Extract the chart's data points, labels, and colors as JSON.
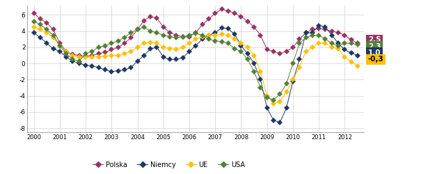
{
  "background_color": "#ffffff",
  "grid_color": "#d0d0d0",
  "xlim": [
    1999.75,
    2012.75
  ],
  "ylim": [
    -8.5,
    7.2
  ],
  "yticks": [
    -8,
    -6,
    -4,
    -2,
    0,
    2,
    4,
    6
  ],
  "xticks": [
    2000,
    2001,
    2002,
    2003,
    2004,
    2005,
    2006,
    2007,
    2008,
    2009,
    2010,
    2011,
    2012
  ],
  "legend_labels": [
    "Polska",
    "Niemcy",
    "UE",
    "USA"
  ],
  "legend_colors": [
    "#993366",
    "#1f3864",
    "#ffc000",
    "#538135"
  ],
  "ann_configs": [
    {
      "text": "2,5",
      "bg": "#993366",
      "fg": "#ffffff"
    },
    {
      "text": "2,3",
      "bg": "#538135",
      "fg": "#ffffff"
    },
    {
      "text": "1,0",
      "bg": "#1f3864",
      "fg": "#ffffff"
    },
    {
      "text": "-0,3",
      "bg": "#ffc000",
      "fg": "#000000"
    }
  ],
  "Polska": {
    "color": "#993366",
    "x": [
      2000.0,
      2000.25,
      2000.5,
      2000.75,
      2001.0,
      2001.25,
      2001.5,
      2001.75,
      2002.0,
      2002.25,
      2002.5,
      2002.75,
      2003.0,
      2003.25,
      2003.5,
      2003.75,
      2004.0,
      2004.25,
      2004.5,
      2004.75,
      2005.0,
      2005.25,
      2005.5,
      2005.75,
      2006.0,
      2006.25,
      2006.5,
      2006.75,
      2007.0,
      2007.25,
      2007.5,
      2007.75,
      2008.0,
      2008.25,
      2008.5,
      2008.75,
      2009.0,
      2009.25,
      2009.5,
      2009.75,
      2010.0,
      2010.25,
      2010.5,
      2010.75,
      2011.0,
      2011.25,
      2011.5,
      2011.75,
      2012.0,
      2012.25,
      2012.5
    ],
    "y": [
      6.2,
      5.5,
      5.0,
      4.2,
      2.5,
      1.5,
      1.1,
      1.0,
      0.9,
      1.0,
      1.2,
      1.4,
      1.7,
      2.0,
      2.5,
      3.2,
      4.2,
      5.3,
      5.8,
      5.6,
      4.5,
      3.8,
      3.5,
      3.3,
      3.3,
      3.8,
      4.8,
      5.5,
      6.2,
      6.7,
      6.5,
      6.2,
      5.8,
      5.2,
      4.5,
      3.5,
      1.7,
      1.5,
      1.2,
      1.5,
      2.0,
      3.0,
      3.8,
      4.2,
      4.3,
      4.2,
      4.0,
      3.8,
      3.5,
      2.9,
      2.5
    ]
  },
  "Niemcy": {
    "color": "#1f3864",
    "x": [
      2000.0,
      2000.25,
      2000.5,
      2000.75,
      2001.0,
      2001.25,
      2001.5,
      2001.75,
      2002.0,
      2002.25,
      2002.5,
      2002.75,
      2003.0,
      2003.25,
      2003.5,
      2003.75,
      2004.0,
      2004.25,
      2004.5,
      2004.75,
      2005.0,
      2005.25,
      2005.5,
      2005.75,
      2006.0,
      2006.25,
      2006.5,
      2006.75,
      2007.0,
      2007.25,
      2007.5,
      2007.75,
      2008.0,
      2008.25,
      2008.5,
      2008.75,
      2009.0,
      2009.25,
      2009.5,
      2009.75,
      2010.0,
      2010.25,
      2010.5,
      2010.75,
      2011.0,
      2011.25,
      2011.5,
      2011.75,
      2012.0,
      2012.25,
      2012.5
    ],
    "y": [
      3.8,
      3.2,
      2.5,
      1.8,
      1.5,
      0.8,
      0.3,
      0.0,
      -0.2,
      -0.3,
      -0.5,
      -0.8,
      -1.0,
      -0.9,
      -0.8,
      -0.5,
      0.3,
      1.0,
      1.8,
      2.0,
      0.8,
      0.5,
      0.5,
      0.7,
      1.5,
      2.2,
      3.0,
      3.5,
      3.8,
      4.4,
      4.3,
      3.6,
      2.2,
      1.2,
      0.0,
      -2.0,
      -5.5,
      -7.0,
      -7.3,
      -5.5,
      -2.2,
      0.5,
      3.8,
      3.8,
      4.7,
      4.5,
      3.5,
      2.5,
      1.7,
      1.3,
      1.0
    ]
  },
  "UE": {
    "color": "#ffc000",
    "x": [
      2000.0,
      2000.25,
      2000.5,
      2000.75,
      2001.0,
      2001.25,
      2001.5,
      2001.75,
      2002.0,
      2002.25,
      2002.5,
      2002.75,
      2003.0,
      2003.25,
      2003.5,
      2003.75,
      2004.0,
      2004.25,
      2004.5,
      2004.75,
      2005.0,
      2005.25,
      2005.5,
      2005.75,
      2006.0,
      2006.25,
      2006.5,
      2006.75,
      2007.0,
      2007.25,
      2007.5,
      2007.75,
      2008.0,
      2008.25,
      2008.5,
      2008.75,
      2009.0,
      2009.25,
      2009.5,
      2009.75,
      2010.0,
      2010.25,
      2010.5,
      2010.75,
      2011.0,
      2011.25,
      2011.5,
      2011.75,
      2012.0,
      2012.25,
      2012.5
    ],
    "y": [
      4.5,
      4.2,
      3.8,
      3.2,
      2.2,
      1.5,
      1.0,
      0.8,
      0.8,
      0.8,
      0.8,
      0.9,
      1.0,
      1.0,
      1.2,
      1.5,
      2.0,
      2.5,
      2.6,
      2.5,
      2.0,
      1.8,
      1.7,
      2.0,
      2.5,
      3.0,
      3.3,
      3.5,
      3.5,
      3.6,
      3.5,
      3.0,
      2.5,
      2.0,
      1.0,
      -1.0,
      -4.0,
      -5.0,
      -4.7,
      -3.5,
      -2.0,
      -0.5,
      1.5,
      2.0,
      2.5,
      2.5,
      2.0,
      1.8,
      0.8,
      0.2,
      -0.3
    ]
  },
  "USA": {
    "color": "#538135",
    "x": [
      2000.0,
      2000.25,
      2000.5,
      2000.75,
      2001.0,
      2001.25,
      2001.5,
      2001.75,
      2002.0,
      2002.25,
      2002.5,
      2002.75,
      2003.0,
      2003.25,
      2003.5,
      2003.75,
      2004.0,
      2004.25,
      2004.5,
      2004.75,
      2005.0,
      2005.25,
      2005.5,
      2005.75,
      2006.0,
      2006.25,
      2006.5,
      2006.75,
      2007.0,
      2007.25,
      2007.5,
      2007.75,
      2008.0,
      2008.25,
      2008.5,
      2008.75,
      2009.0,
      2009.25,
      2009.5,
      2009.75,
      2010.0,
      2010.25,
      2010.5,
      2010.75,
      2011.0,
      2011.25,
      2011.5,
      2011.75,
      2012.0,
      2012.25,
      2012.5
    ],
    "y": [
      5.2,
      4.8,
      4.2,
      3.5,
      2.2,
      1.2,
      0.5,
      0.3,
      1.2,
      1.5,
      2.0,
      2.2,
      2.5,
      2.8,
      3.2,
      3.8,
      4.2,
      4.5,
      4.0,
      3.8,
      3.5,
      3.3,
      3.2,
      3.3,
      3.5,
      3.7,
      3.5,
      3.0,
      2.8,
      2.7,
      2.5,
      1.8,
      1.5,
      0.5,
      -1.0,
      -3.0,
      -4.2,
      -4.5,
      -3.8,
      -2.5,
      0.0,
      2.5,
      3.2,
      3.5,
      3.5,
      3.0,
      2.5,
      2.2,
      2.5,
      2.5,
      2.3
    ]
  }
}
